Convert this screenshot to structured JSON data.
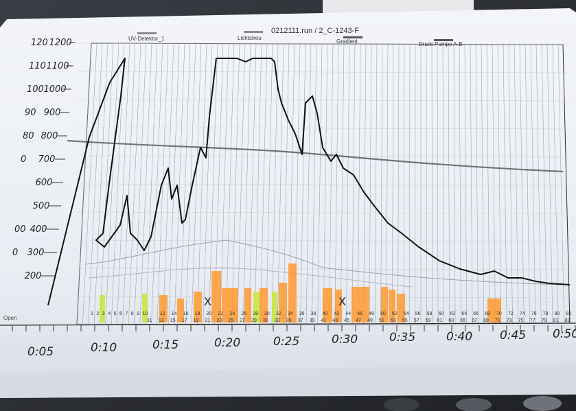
{
  "photo": {
    "subject": "printed chromatogram on a desk",
    "colors": {
      "desk": "#2b2e33",
      "paper": "#eef1f6",
      "paper_shadow": "#c9ced8",
      "trace": "#111111",
      "gray_trace": "#6b6b6b",
      "grid": "#8d95a8",
      "highlight_orange": "#ff9a30",
      "highlight_yellow": "#c8e63a"
    }
  },
  "plot": {
    "title": "0212111.run / 2_C-1243-F",
    "legend": [
      "UV-Detektor_1",
      "Lichtstreu",
      "Gradient",
      "Druck Pumpe A-B"
    ],
    "left_axis_outer": [
      "120",
      "110",
      "100",
      "90",
      "80",
      "0",
      "",
      "",
      "00",
      "0"
    ],
    "left_axis_inner": [
      "1200",
      "1100",
      "1000",
      "900",
      "800",
      "700",
      "600",
      "500",
      "400",
      "300",
      "200"
    ],
    "open_label": "Open",
    "fractions_top": [
      "1",
      "2",
      "3",
      "4",
      "5",
      "6",
      "7",
      "8",
      "9",
      "10",
      "12",
      "14",
      "16",
      "18",
      "20",
      "22",
      "24",
      "26",
      "28",
      "30",
      "32",
      "34",
      "36",
      "38",
      "40",
      "42",
      "44",
      "46",
      "48",
      "50",
      "52",
      "54",
      "56",
      "58",
      "60",
      "62",
      "64",
      "66",
      "68",
      "70",
      "72",
      "74",
      "76",
      "78",
      "80",
      "82",
      "84",
      "86",
      "88"
    ],
    "fractions_bottom": [
      "11",
      "13",
      "15",
      "17",
      "19",
      "21",
      "23",
      "25",
      "27",
      "29",
      "31",
      "33",
      "35",
      "37",
      "39",
      "41",
      "43",
      "45",
      "47",
      "49",
      "51",
      "53",
      "55",
      "57",
      "59",
      "61",
      "63",
      "65",
      "67",
      "69",
      "71",
      "73",
      "75",
      "77",
      "79",
      "81",
      "83",
      "85",
      "87"
    ],
    "time_labels": [
      "0:05",
      "0:10",
      "0:15",
      "0:20",
      "0:25",
      "0:30",
      "0:35",
      "0:40",
      "0:45",
      "0:50"
    ],
    "marks": [
      "X",
      "X"
    ]
  }
}
